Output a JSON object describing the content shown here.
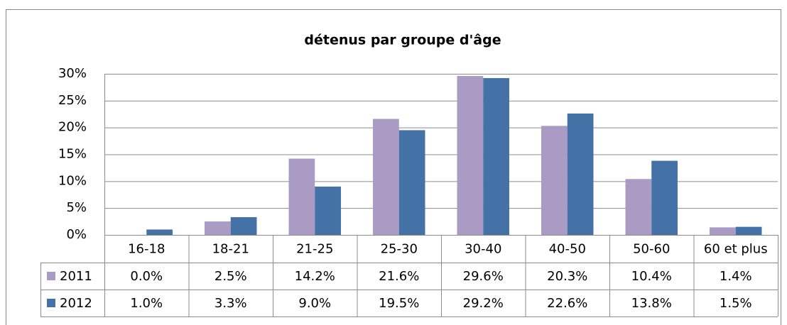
{
  "chart_data": {
    "type": "bar",
    "title": "détenus par groupe d'âge",
    "categories": [
      "16-18",
      "18-21",
      "21-25",
      "25-30",
      "30-40",
      "40-50",
      "50-60",
      "60 et plus"
    ],
    "series": [
      {
        "name": "2011",
        "color": "#a99bc4",
        "values": [
          0.0,
          2.5,
          14.2,
          21.6,
          29.6,
          20.3,
          10.4,
          1.4
        ],
        "value_labels": [
          "0.0%",
          "2.5%",
          "14.2%",
          "21.6%",
          "29.6%",
          "20.3%",
          "10.4%",
          "1.4%"
        ]
      },
      {
        "name": "2012",
        "color": "#4472a6",
        "values": [
          1.0,
          3.3,
          9.0,
          19.5,
          29.2,
          22.6,
          13.8,
          1.5
        ],
        "value_labels": [
          "1.0%",
          "3.3%",
          "9.0%",
          "19.5%",
          "29.2%",
          "22.6%",
          "13.8%",
          "1.5%"
        ]
      }
    ],
    "ylim": [
      0,
      30
    ],
    "yticks": [
      {
        "value": 0,
        "label": "0%"
      },
      {
        "value": 5,
        "label": "5%"
      },
      {
        "value": 10,
        "label": "10%"
      },
      {
        "value": 15,
        "label": "15%"
      },
      {
        "value": 20,
        "label": "20%"
      },
      {
        "value": 25,
        "label": "25%"
      },
      {
        "value": 30,
        "label": "30%"
      }
    ],
    "grid": true
  }
}
